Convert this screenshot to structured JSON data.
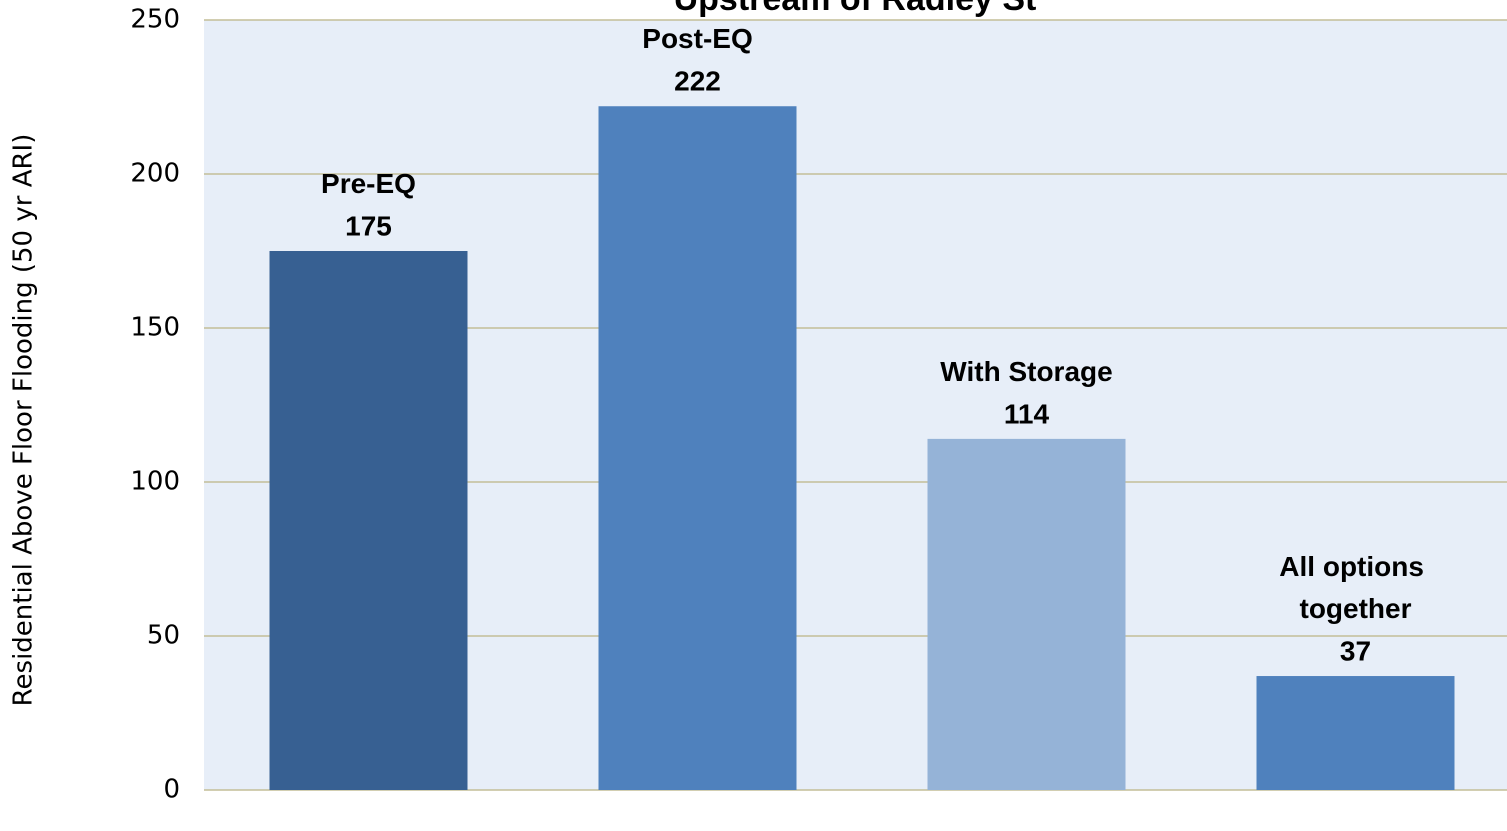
{
  "chart_data": {
    "type": "bar",
    "title": "Upstream of Radley St",
    "ylabel": "Residential Above Floor Flooding (50 yr ARI)",
    "categories": [
      "Pre-EQ",
      "Post-EQ",
      "With Storage",
      "All options together"
    ],
    "values": [
      175,
      222,
      114,
      37
    ],
    "colors": [
      "#376092",
      "#4f81bd",
      "#95b3d7",
      "#4f81bd"
    ],
    "ylim": [
      0,
      250
    ],
    "yticks": [
      0,
      50,
      100,
      150,
      200,
      250
    ],
    "grid": true
  }
}
